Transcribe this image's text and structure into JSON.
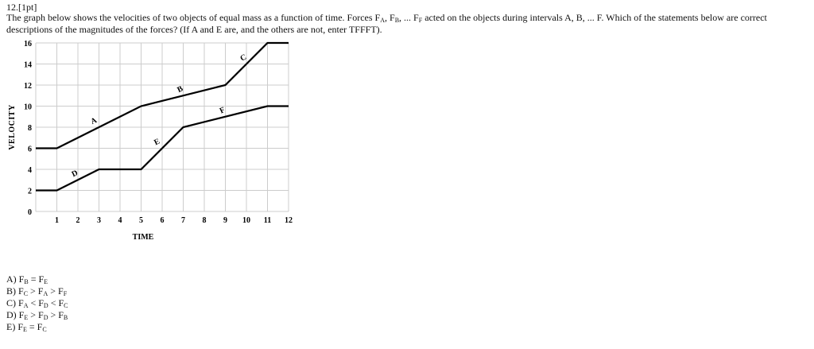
{
  "question": {
    "number": "12.[1pt]",
    "text_1": "The graph below shows the velocities of two objects of equal mass as a function of time. Forces F",
    "sub_A": "A",
    "text_2": ", F",
    "sub_B": "B",
    "text_3": ", ... F",
    "sub_F": "F",
    "text_4": " acted on the objects during intervals A, B, ... F. Which of the statements below are correct descriptions of the magnitudes of the forces? (If A and E are, and the others are not, enter TFFFT)."
  },
  "chart_data": {
    "type": "line",
    "xlabel": "TIME",
    "ylabel": "VELOCITY",
    "xlim": [
      0,
      12
    ],
    "ylim": [
      0,
      16
    ],
    "x_ticks": [
      1,
      2,
      3,
      4,
      5,
      6,
      7,
      8,
      9,
      10,
      11,
      12
    ],
    "y_ticks": [
      0,
      2,
      4,
      6,
      8,
      10,
      12,
      14,
      16
    ],
    "grid": true,
    "series": [
      {
        "points": [
          [
            0,
            6
          ],
          [
            1,
            6
          ],
          [
            5,
            10
          ],
          [
            9,
            12
          ],
          [
            11,
            16
          ],
          [
            12,
            16
          ]
        ]
      },
      {
        "points": [
          [
            0,
            2
          ],
          [
            1,
            2
          ],
          [
            3,
            4
          ],
          [
            5,
            4
          ],
          [
            7,
            8
          ],
          [
            11,
            10
          ],
          [
            12,
            10
          ]
        ]
      }
    ],
    "annotations": [
      {
        "text": "A",
        "x": 2.8,
        "y": 8.4
      },
      {
        "text": "B",
        "x": 6.9,
        "y": 11.4
      },
      {
        "text": "C",
        "x": 9.9,
        "y": 14.4
      },
      {
        "text": "D",
        "x": 1.9,
        "y": 3.4
      },
      {
        "text": "E",
        "x": 5.8,
        "y": 6.4
      },
      {
        "text": "F",
        "x": 8.9,
        "y": 9.4
      }
    ]
  },
  "options": [
    {
      "label": "A) F",
      "s1": "B",
      "op1": " = F",
      "s2": "E",
      "op2": "",
      "s3": ""
    },
    {
      "label": "B) F",
      "s1": "C",
      "op1": " > F",
      "s2": "A",
      "op2": " > F",
      "s3": "F"
    },
    {
      "label": "C) F",
      "s1": "A",
      "op1": " < F",
      "s2": "D",
      "op2": " < F",
      "s3": "C"
    },
    {
      "label": "D) F",
      "s1": "E",
      "op1": " > F",
      "s2": "D",
      "op2": " > F",
      "s3": "B"
    },
    {
      "label": "E) F",
      "s1": "E",
      "op1": " = F",
      "s2": "C",
      "op2": "",
      "s3": ""
    }
  ]
}
